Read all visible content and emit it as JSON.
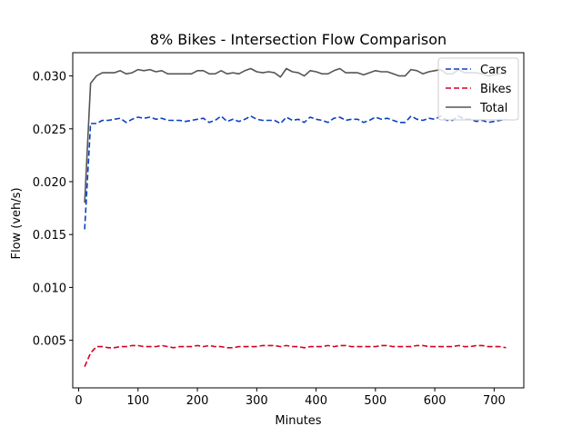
{
  "chart_data": {
    "type": "line",
    "title": "8% Bikes - Intersection Flow Comparison",
    "xlabel": "Minutes",
    "ylabel": "Flow (veh/s)",
    "xlim": [
      -10,
      750
    ],
    "ylim": [
      0.0005,
      0.0322
    ],
    "xticks": [
      0,
      100,
      200,
      300,
      400,
      500,
      600,
      700
    ],
    "yticks": [
      0.005,
      0.01,
      0.015,
      0.02,
      0.025,
      0.03
    ],
    "ytick_labels": [
      "0.005",
      "0.010",
      "0.015",
      "0.020",
      "0.025",
      "0.030"
    ],
    "legend_position": "top-right",
    "x": [
      10,
      20,
      30,
      40,
      50,
      60,
      70,
      80,
      90,
      100,
      110,
      120,
      130,
      140,
      150,
      160,
      170,
      180,
      190,
      200,
      210,
      220,
      230,
      240,
      250,
      260,
      270,
      280,
      290,
      300,
      310,
      320,
      330,
      340,
      350,
      360,
      370,
      380,
      390,
      400,
      410,
      420,
      430,
      440,
      450,
      460,
      470,
      480,
      490,
      500,
      510,
      520,
      530,
      540,
      550,
      560,
      570,
      580,
      590,
      600,
      610,
      620,
      630,
      640,
      650,
      660,
      670,
      680,
      690,
      700,
      710,
      720
    ],
    "series": [
      {
        "name": "Cars",
        "color": "#0a3fc4",
        "dash": "6,3",
        "values": [
          0.0155,
          0.0255,
          0.0255,
          0.0258,
          0.0258,
          0.0259,
          0.026,
          0.0256,
          0.0259,
          0.0261,
          0.026,
          0.0261,
          0.0259,
          0.026,
          0.0258,
          0.0258,
          0.0258,
          0.0257,
          0.0258,
          0.0259,
          0.026,
          0.0256,
          0.0258,
          0.0262,
          0.0257,
          0.0259,
          0.0257,
          0.0259,
          0.0262,
          0.0259,
          0.0258,
          0.0258,
          0.0258,
          0.0255,
          0.0261,
          0.0258,
          0.0259,
          0.0256,
          0.0261,
          0.0259,
          0.0258,
          0.0256,
          0.026,
          0.0261,
          0.0258,
          0.0259,
          0.0259,
          0.0256,
          0.0258,
          0.0261,
          0.0259,
          0.026,
          0.0258,
          0.0256,
          0.0256,
          0.0262,
          0.0259,
          0.0258,
          0.026,
          0.0259,
          0.0262,
          0.0258,
          0.0258,
          0.0262,
          0.0259,
          0.0259,
          0.0257,
          0.0258,
          0.0256,
          0.0257,
          0.0258,
          0.0259
        ]
      },
      {
        "name": "Bikes",
        "color": "#d60026",
        "dash": "6,3",
        "values": [
          0.0025,
          0.0038,
          0.0044,
          0.0044,
          0.0043,
          0.0043,
          0.0044,
          0.0044,
          0.0045,
          0.0045,
          0.0044,
          0.0044,
          0.0044,
          0.0045,
          0.0044,
          0.0043,
          0.0044,
          0.0044,
          0.0044,
          0.0045,
          0.0044,
          0.0045,
          0.0044,
          0.0044,
          0.0043,
          0.0043,
          0.0044,
          0.0044,
          0.0044,
          0.0044,
          0.0045,
          0.0045,
          0.0045,
          0.0044,
          0.0045,
          0.0044,
          0.0044,
          0.0043,
          0.0044,
          0.0044,
          0.0044,
          0.0045,
          0.0044,
          0.0045,
          0.0045,
          0.0044,
          0.0044,
          0.0044,
          0.0044,
          0.0044,
          0.0045,
          0.0045,
          0.0044,
          0.0044,
          0.0044,
          0.0044,
          0.0045,
          0.0045,
          0.0044,
          0.0044,
          0.0044,
          0.0044,
          0.0044,
          0.0045,
          0.0044,
          0.0044,
          0.0045,
          0.0045,
          0.0044,
          0.0044,
          0.0044,
          0.0043
        ]
      },
      {
        "name": "Total",
        "color": "#555555",
        "dash": "",
        "values": [
          0.018,
          0.0293,
          0.03,
          0.0303,
          0.0303,
          0.0303,
          0.0305,
          0.0302,
          0.0303,
          0.0306,
          0.0305,
          0.0306,
          0.0304,
          0.0305,
          0.0302,
          0.0302,
          0.0302,
          0.0302,
          0.0302,
          0.0305,
          0.0305,
          0.0302,
          0.0302,
          0.0305,
          0.0302,
          0.0303,
          0.0302,
          0.0305,
          0.0307,
          0.0304,
          0.0303,
          0.0304,
          0.0303,
          0.0299,
          0.0307,
          0.0304,
          0.0303,
          0.03,
          0.0305,
          0.0304,
          0.0302,
          0.0302,
          0.0305,
          0.0307,
          0.0303,
          0.0303,
          0.0303,
          0.0301,
          0.0303,
          0.0305,
          0.0304,
          0.0304,
          0.0302,
          0.03,
          0.03,
          0.0306,
          0.0305,
          0.0302,
          0.0304,
          0.0305,
          0.0306,
          0.0302,
          0.0302,
          0.0306,
          0.0303,
          0.0303,
          0.0303,
          0.0302,
          0.03,
          0.0301,
          0.0302,
          0.0302
        ]
      }
    ]
  }
}
